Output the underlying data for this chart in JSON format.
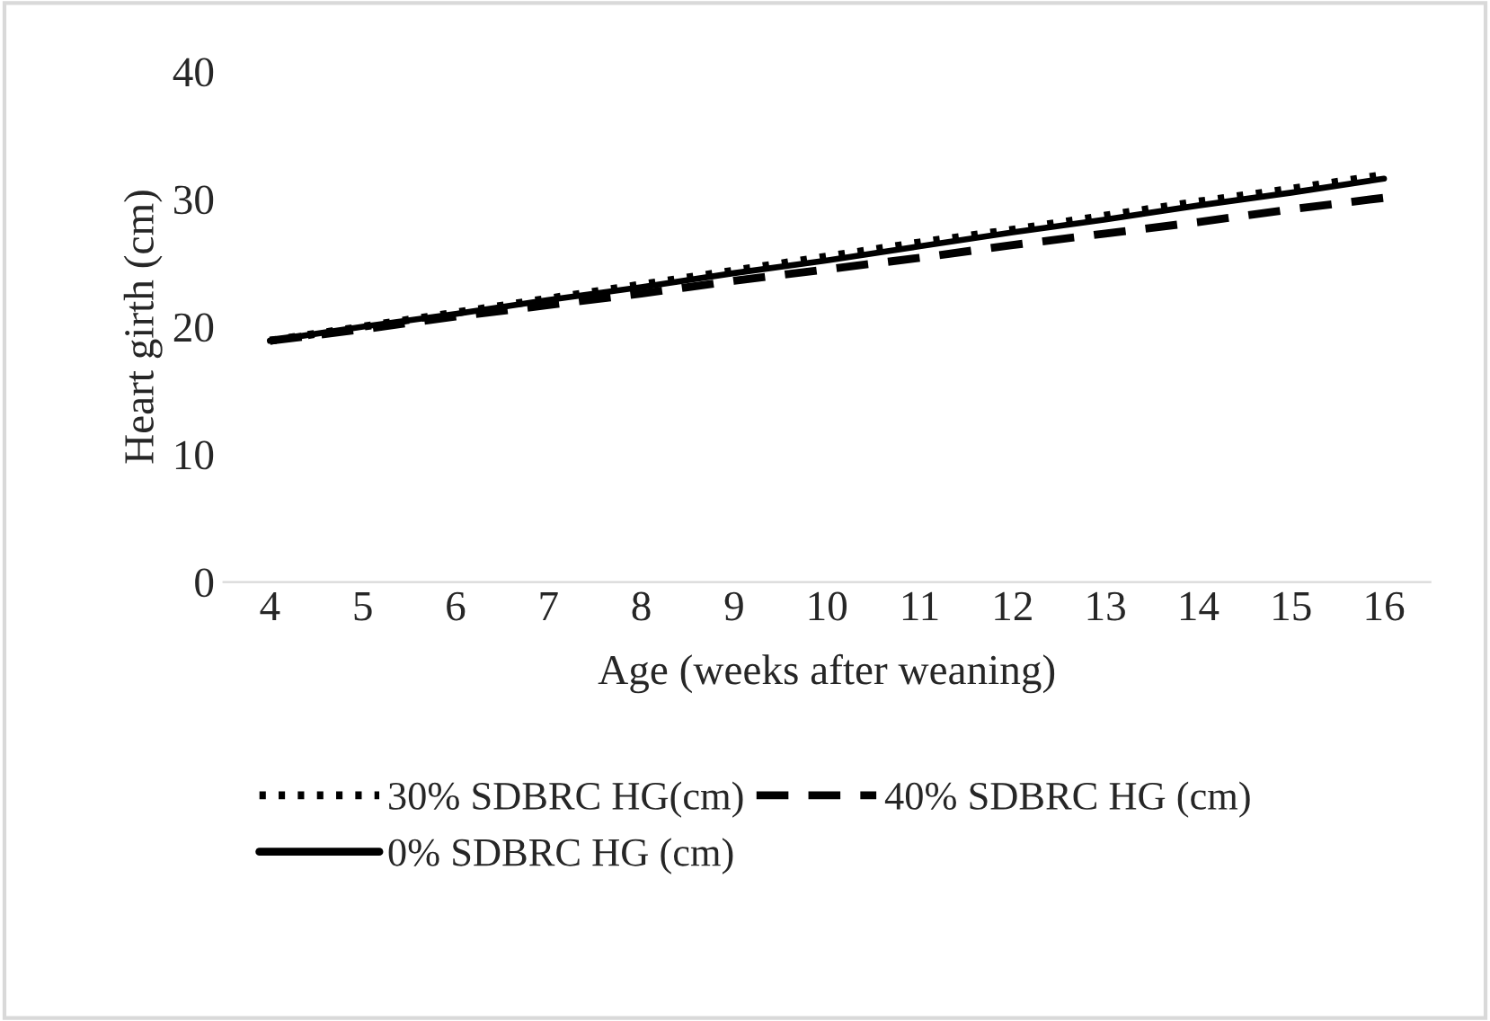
{
  "chart_data": {
    "type": "line",
    "xlabel": "Age (weeks after weaning)",
    "ylabel": "Heart girth (cm)",
    "categories": [
      "4",
      "5",
      "6",
      "7",
      "8",
      "9",
      "10",
      "11",
      "12",
      "13",
      "14",
      "15",
      "16"
    ],
    "series": [
      {
        "name": "30% SDBRC HG(cm)",
        "color": "#000000",
        "line_style": "dotted",
        "values": [
          18.9,
          20.0,
          21.1,
          22.2,
          23.3,
          24.4,
          25.5,
          26.6,
          27.6,
          28.7,
          29.8,
          30.8,
          31.9
        ]
      },
      {
        "name": "40% SDBRC HG (cm)",
        "color": "#000000",
        "line_style": "dashed",
        "values": [
          18.9,
          19.8,
          20.8,
          21.7,
          22.6,
          23.6,
          24.5,
          25.4,
          26.4,
          27.3,
          28.2,
          29.2,
          30.1
        ]
      },
      {
        "name": "0% SDBRC HG (cm)",
        "color": "#000000",
        "line_style": "solid",
        "values": [
          18.9,
          20.0,
          21.0,
          22.1,
          23.1,
          24.2,
          25.2,
          26.3,
          27.4,
          28.4,
          29.5,
          30.5,
          31.6
        ]
      }
    ],
    "ylim": [
      0,
      40
    ],
    "yticks": [
      0,
      10,
      20,
      30,
      40
    ],
    "grid": false,
    "legend": "bottom",
    "marker": "none"
  }
}
